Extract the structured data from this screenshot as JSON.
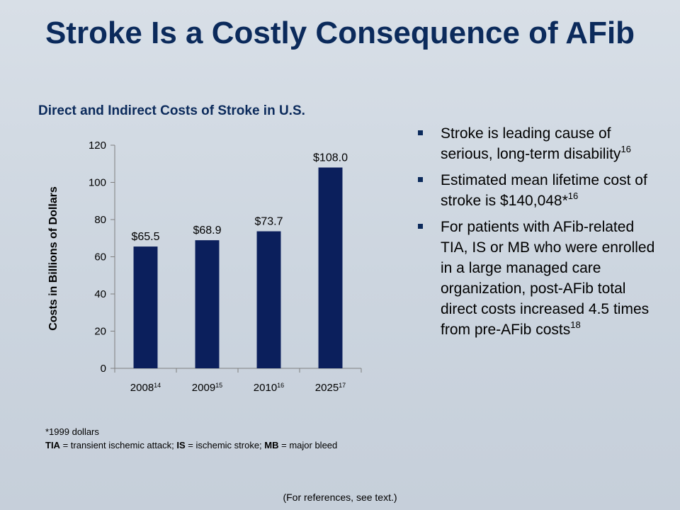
{
  "slide": {
    "title": "Stroke Is a Costly Consequence of AFib",
    "reference_note": "(For references, see text.)"
  },
  "bullets": [
    {
      "text": "Stroke is leading cause of serious, long-term disability",
      "sup": "16"
    },
    {
      "text": "Estimated mean lifetime cost of stroke is $140,048*",
      "sup": "16"
    },
    {
      "text": "For patients with AFib-related TIA, IS or MB who were enrolled in a large managed care organization, post-AFib total direct costs increased 4.5 times from pre-AFib costs",
      "sup": "18"
    }
  ],
  "footnotes": {
    "dollars": "*1999 dollars",
    "abbrev": [
      {
        "term": "TIA",
        "sep": " = ",
        "def": "transient ischemic attack; "
      },
      {
        "term": "IS",
        "sep": " = ",
        "def": "ischemic stroke; "
      },
      {
        "term": "MB",
        "sep": " = ",
        "def": "major bleed"
      }
    ]
  },
  "colors": {
    "bar": "#0b1f5c",
    "title": "#0b2a5b"
  },
  "chart_data": {
    "type": "bar",
    "title": "Direct and Indirect Costs of Stroke in U.S.",
    "ylabel": "Costs in Billions of Dollars",
    "xlabel": "",
    "categories": [
      "2008",
      "2009",
      "2010",
      "2025"
    ],
    "category_sups": [
      "14",
      "15",
      "16",
      "17"
    ],
    "values": [
      65.5,
      68.9,
      73.7,
      108.0
    ],
    "data_labels": [
      "$65.5",
      "$68.9",
      "$73.7",
      "$108.0"
    ],
    "ylim": [
      0,
      120
    ],
    "yticks": [
      0,
      20,
      40,
      60,
      80,
      100,
      120
    ],
    "grid": false,
    "legend": "none"
  }
}
